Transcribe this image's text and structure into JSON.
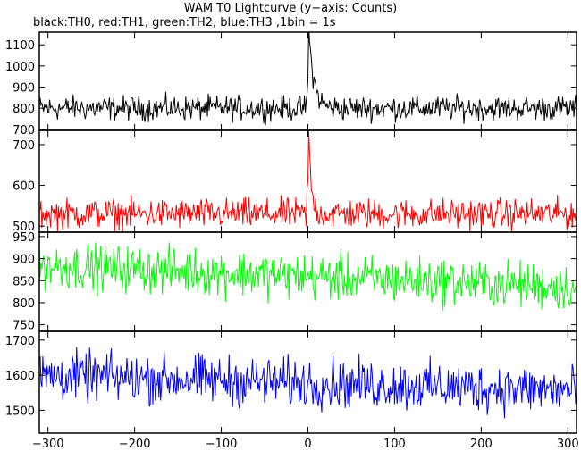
{
  "chart_data": {
    "type": "line",
    "title": "WAM T0 Lightcurve (y−axis: Counts)",
    "subtitle": "black:TH0, red:TH1, green:TH2, blue:TH3 ,1bin = 1s",
    "x": {
      "range": [
        -310,
        310
      ],
      "ticks": [
        -300,
        -200,
        -100,
        0,
        100,
        200,
        300
      ],
      "bin_seconds": 1
    },
    "grid": false,
    "panels": [
      {
        "name": "TH0",
        "color": "#000000",
        "ylim": [
          695,
          1160
        ],
        "yticks": [
          700,
          800,
          900,
          1000,
          1100
        ],
        "baseline": 800,
        "noise": 50,
        "spread_slope": 0,
        "peak": {
          "x": 1,
          "height": 360,
          "decay": 6
        }
      },
      {
        "name": "TH1",
        "color": "#ff0000",
        "ylim": [
          485,
          735
        ],
        "yticks": [
          500,
          600,
          700
        ],
        "baseline": 530,
        "noise": 32,
        "spread_slope": 0,
        "peak": {
          "x": 1,
          "height": 185,
          "decay": 3
        }
      },
      {
        "name": "TH2",
        "color": "#00ff00",
        "ylim": [
          735,
          960
        ],
        "yticks": [
          750,
          800,
          850,
          900,
          950
        ],
        "baseline": 860,
        "noise": 45,
        "spread_slope": -0.08,
        "peak": null
      },
      {
        "name": "TH3",
        "color": "#0000ff",
        "ylim": [
          1435,
          1725
        ],
        "yticks": [
          1500,
          1600,
          1700
        ],
        "baseline": 1578,
        "noise": 60,
        "spread_slope": -0.07,
        "peak": null
      }
    ]
  }
}
